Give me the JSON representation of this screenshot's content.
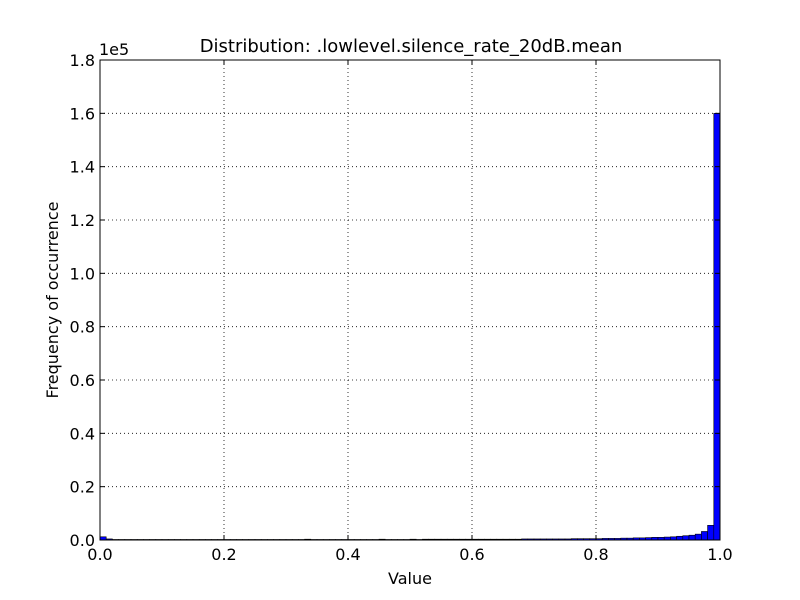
{
  "chart_data": {
    "type": "bar",
    "title": "Distribution: .lowlevel.silence_rate_20dB.mean",
    "xlabel": "Value",
    "ylabel": "Frequency of occurrence",
    "y_multiplier_label": "1e5",
    "xlim": [
      0.0,
      1.0
    ],
    "ylim": [
      0.0,
      1.8
    ],
    "x_ticks": [
      "0.0",
      "0.2",
      "0.4",
      "0.6",
      "0.8",
      "1.0"
    ],
    "y_ticks": [
      "0.0",
      "0.2",
      "0.4",
      "0.6",
      "0.8",
      "1.0",
      "1.2",
      "1.4",
      "1.6",
      "1.8"
    ],
    "grid": true,
    "bar_color": "#0000ff",
    "bin_width": 0.01,
    "bin_starts": [
      0.0,
      0.01,
      0.02,
      0.03,
      0.04,
      0.05,
      0.06,
      0.07,
      0.08,
      0.09,
      0.1,
      0.11,
      0.12,
      0.13,
      0.14,
      0.15,
      0.16,
      0.17,
      0.18,
      0.19,
      0.2,
      0.21,
      0.22,
      0.23,
      0.24,
      0.25,
      0.26,
      0.27,
      0.28,
      0.29,
      0.3,
      0.31,
      0.32,
      0.33,
      0.34,
      0.35,
      0.36,
      0.37,
      0.38,
      0.39,
      0.4,
      0.41,
      0.42,
      0.43,
      0.44,
      0.45,
      0.46,
      0.47,
      0.48,
      0.49,
      0.5,
      0.51,
      0.52,
      0.53,
      0.54,
      0.55,
      0.56,
      0.57,
      0.58,
      0.59,
      0.6,
      0.61,
      0.62,
      0.63,
      0.64,
      0.65,
      0.66,
      0.67,
      0.68,
      0.69,
      0.7,
      0.71,
      0.72,
      0.73,
      0.74,
      0.75,
      0.76,
      0.77,
      0.78,
      0.79,
      0.8,
      0.81,
      0.82,
      0.83,
      0.84,
      0.85,
      0.86,
      0.87,
      0.88,
      0.89,
      0.9,
      0.91,
      0.92,
      0.93,
      0.94,
      0.95,
      0.96,
      0.97,
      0.98,
      0.99
    ],
    "values": [
      0.012,
      0.004,
      0.002,
      0.002,
      0.002,
      0.002,
      0.002,
      0.002,
      0.002,
      0.002,
      0.002,
      0.002,
      0.002,
      0.002,
      0.002,
      0.002,
      0.002,
      0.002,
      0.002,
      0.002,
      0.002,
      0.002,
      0.002,
      0.002,
      0.002,
      0.002,
      0.002,
      0.002,
      0.002,
      0.002,
      0.002,
      0.002,
      0.002,
      0.003,
      0.002,
      0.002,
      0.002,
      0.002,
      0.002,
      0.002,
      0.002,
      0.002,
      0.002,
      0.002,
      0.002,
      0.003,
      0.002,
      0.002,
      0.002,
      0.002,
      0.003,
      0.002,
      0.003,
      0.003,
      0.003,
      0.003,
      0.003,
      0.003,
      0.003,
      0.003,
      0.003,
      0.003,
      0.003,
      0.003,
      0.003,
      0.003,
      0.003,
      0.003,
      0.004,
      0.004,
      0.004,
      0.004,
      0.004,
      0.004,
      0.004,
      0.004,
      0.005,
      0.005,
      0.005,
      0.005,
      0.005,
      0.006,
      0.006,
      0.006,
      0.007,
      0.007,
      0.008,
      0.008,
      0.009,
      0.01,
      0.01,
      0.011,
      0.012,
      0.014,
      0.016,
      0.018,
      0.022,
      0.032,
      0.055,
      1.6
    ]
  }
}
